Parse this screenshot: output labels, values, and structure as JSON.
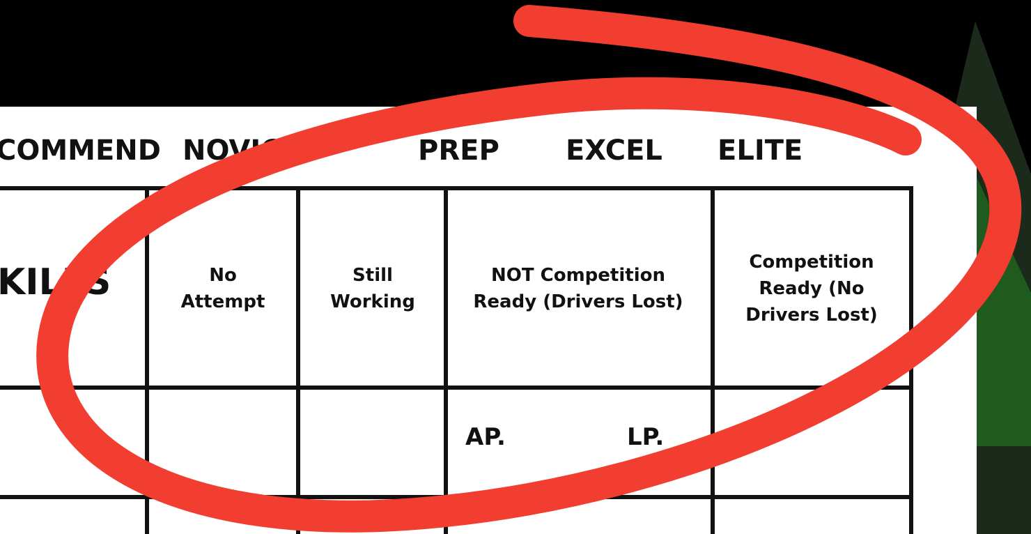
{
  "header": {
    "levels": [
      "COMMEND",
      "NOVICE",
      "PREP",
      "EXCEL",
      "ELITE"
    ]
  },
  "table": {
    "skills_header": "KILLS",
    "columns": [
      "No Attempt",
      "Still Working",
      "NOT Competition Ready (Drivers Lost)",
      "Competition Ready (No Drivers Lost)"
    ],
    "rows": [
      [
        "AP.",
        "LP."
      ]
    ]
  }
}
